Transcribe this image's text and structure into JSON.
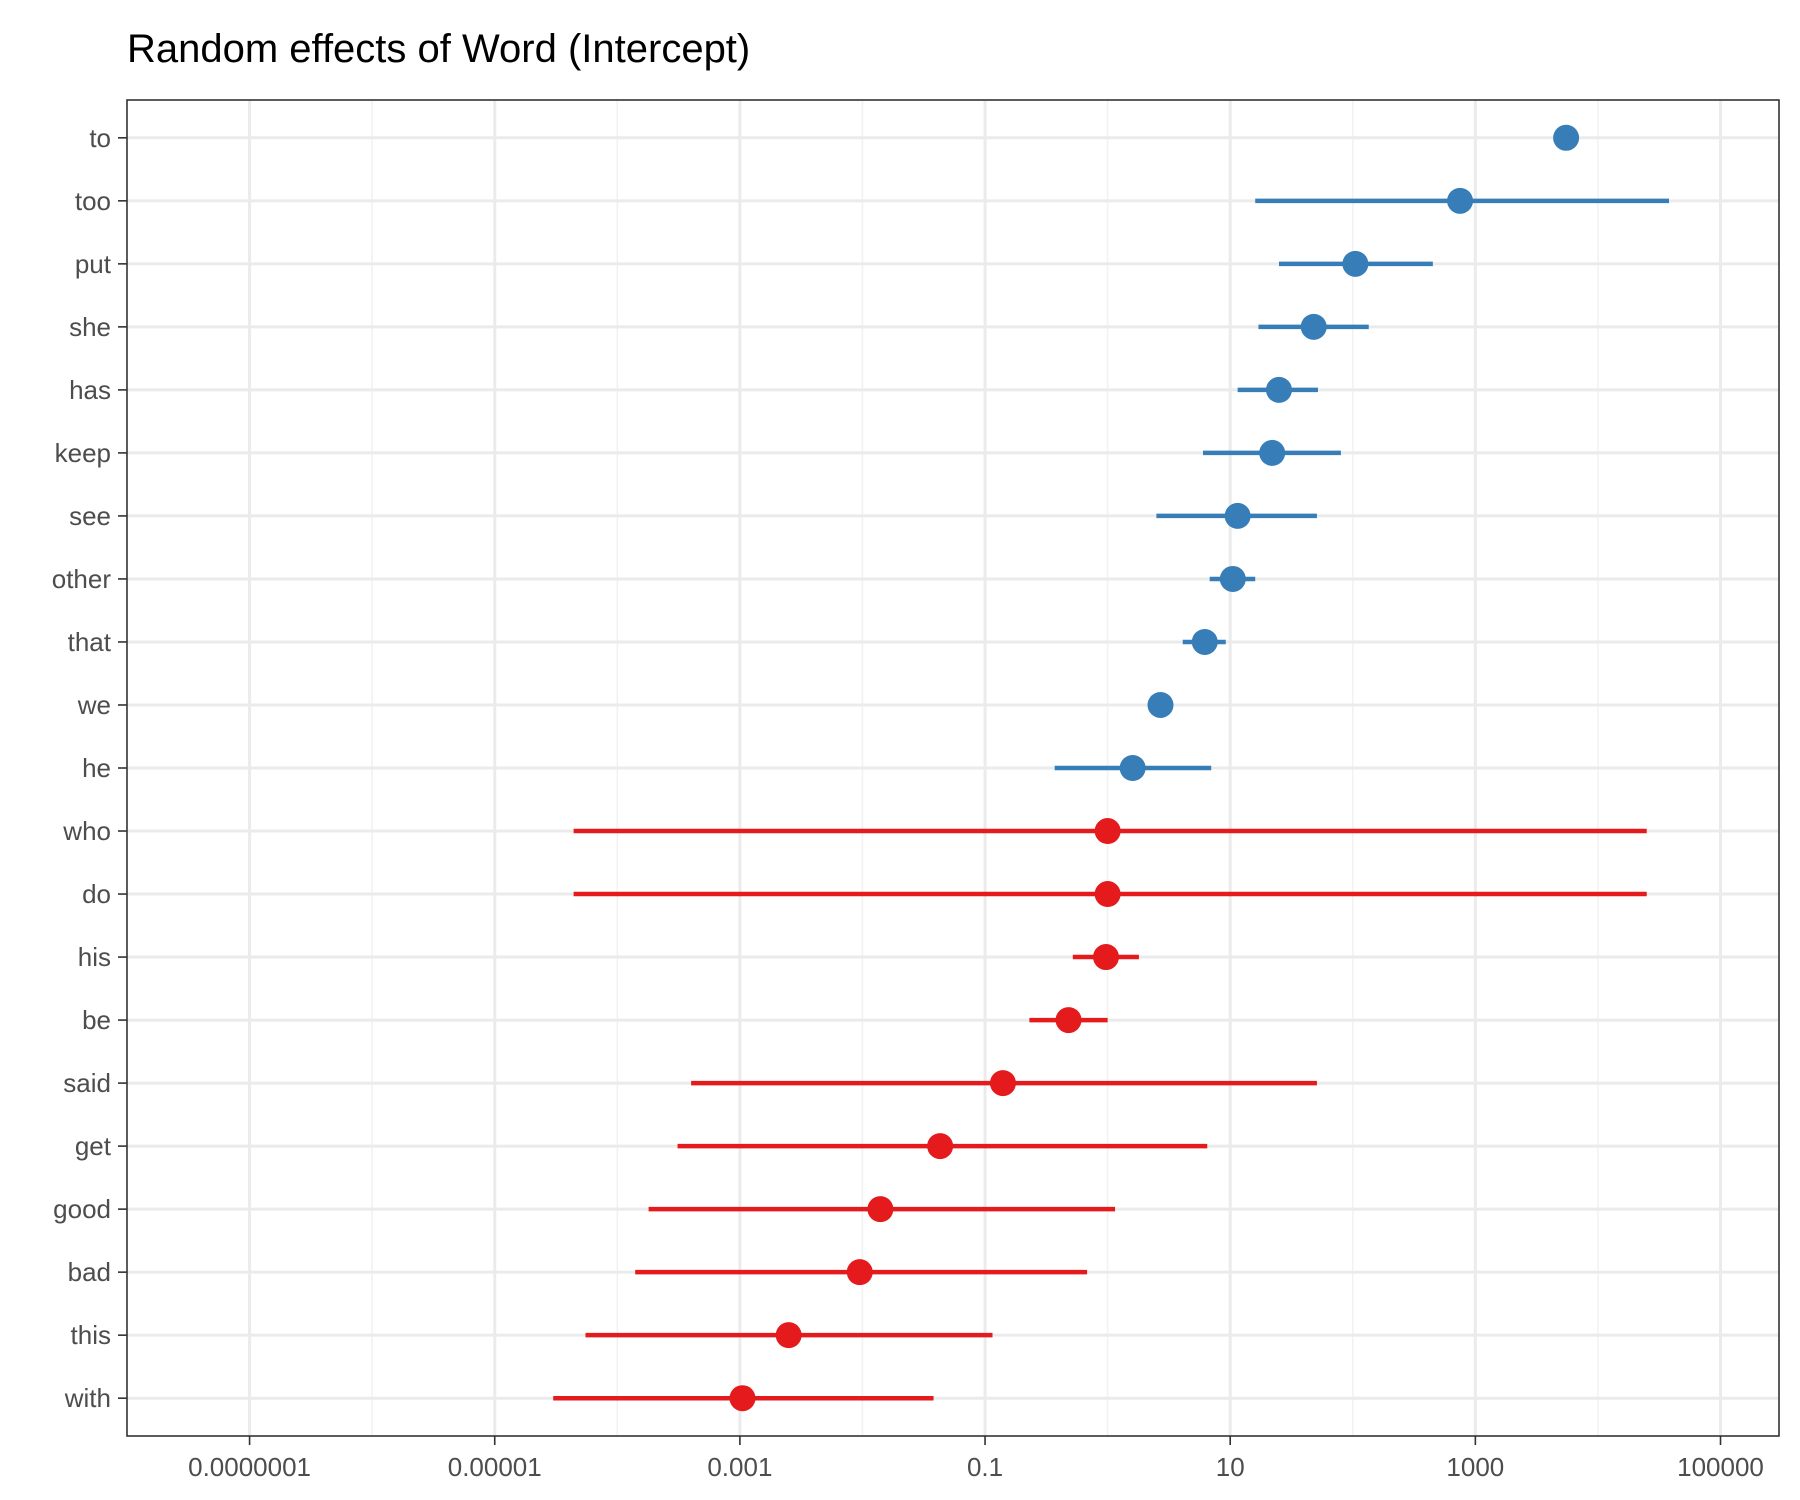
{
  "chart_data": {
    "type": "scatter",
    "title": "Random effects of Word (Intercept)",
    "xlabel": "",
    "ylabel": "",
    "x_scale": "log10",
    "xlim": [
      1e-08,
      300000
    ],
    "x_ticks": [
      1e-07,
      1e-05,
      0.001,
      0.1,
      10,
      1000,
      100000
    ],
    "x_tick_labels": [
      "0.0000001",
      "0.00001",
      "0.001",
      "0.1",
      "10",
      "1000",
      "100000"
    ],
    "grid": true,
    "legend": "none",
    "colors": {
      "positive": "#377eb8",
      "negative": "#e41a1c"
    },
    "categories": [
      "to",
      "too",
      "put",
      "she",
      "has",
      "keep",
      "see",
      "other",
      "that",
      "we",
      "he",
      "who",
      "do",
      "his",
      "be",
      "said",
      "get",
      "good",
      "bad",
      "this",
      "with"
    ],
    "points": [
      {
        "word": "to",
        "estimate": 5500,
        "lower": null,
        "upper": null,
        "group": "positive"
      },
      {
        "word": "too",
        "estimate": 750,
        "lower": 16,
        "upper": 38000,
        "group": "positive"
      },
      {
        "word": "put",
        "estimate": 105,
        "lower": 25,
        "upper": 450,
        "group": "positive"
      },
      {
        "word": "she",
        "estimate": 48,
        "lower": 17,
        "upper": 135,
        "group": "positive"
      },
      {
        "word": "has",
        "estimate": 25,
        "lower": 11.5,
        "upper": 52,
        "group": "positive"
      },
      {
        "word": "keep",
        "estimate": 22,
        "lower": 6,
        "upper": 80,
        "group": "positive"
      },
      {
        "word": "see",
        "estimate": 11.5,
        "lower": 2.5,
        "upper": 51,
        "group": "positive"
      },
      {
        "word": "other",
        "estimate": 10.5,
        "lower": 6.8,
        "upper": 16,
        "group": "positive"
      },
      {
        "word": "that",
        "estimate": 6.2,
        "lower": 4.1,
        "upper": 9.2,
        "group": "positive"
      },
      {
        "word": "we",
        "estimate": 2.7,
        "lower": 2.3,
        "upper": 3.1,
        "group": "positive"
      },
      {
        "word": "he",
        "estimate": 1.6,
        "lower": 0.37,
        "upper": 7,
        "group": "positive"
      },
      {
        "word": "who",
        "estimate": 1.0,
        "lower": 4.4e-05,
        "upper": 25000,
        "group": "negative"
      },
      {
        "word": "do",
        "estimate": 1.0,
        "lower": 4.4e-05,
        "upper": 25000,
        "group": "negative"
      },
      {
        "word": "his",
        "estimate": 0.97,
        "lower": 0.52,
        "upper": 1.8,
        "group": "negative"
      },
      {
        "word": "be",
        "estimate": 0.48,
        "lower": 0.23,
        "upper": 1.0,
        "group": "negative"
      },
      {
        "word": "said",
        "estimate": 0.14,
        "lower": 0.0004,
        "upper": 51,
        "group": "negative"
      },
      {
        "word": "get",
        "estimate": 0.043,
        "lower": 0.00031,
        "upper": 6.5,
        "group": "negative"
      },
      {
        "word": "good",
        "estimate": 0.014,
        "lower": 0.00018,
        "upper": 1.15,
        "group": "negative"
      },
      {
        "word": "bad",
        "estimate": 0.0095,
        "lower": 0.00014,
        "upper": 0.68,
        "group": "negative"
      },
      {
        "word": "this",
        "estimate": 0.0025,
        "lower": 5.5e-05,
        "upper": 0.115,
        "group": "negative"
      },
      {
        "word": "with",
        "estimate": 0.00105,
        "lower": 3e-05,
        "upper": 0.038,
        "group": "negative"
      }
    ]
  }
}
